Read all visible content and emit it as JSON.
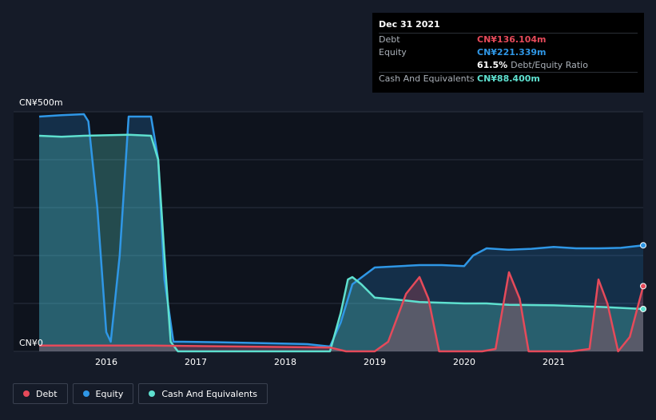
{
  "tooltip": {
    "date": "Dec 31 2021",
    "rows": [
      {
        "label": "Debt",
        "value": "CN¥136.104m",
        "color": "#e64a5a"
      },
      {
        "label": "Equity",
        "value": "CN¥221.339m",
        "color": "#2f97e6"
      },
      {
        "label": "",
        "value": "61.5%",
        "suffix": "Debt/Equity Ratio",
        "color": "#ffffff"
      },
      {
        "label": "Cash And Equivalents",
        "value": "CN¥88.400m",
        "color": "#5ee0cf"
      }
    ]
  },
  "legend": [
    {
      "label": "Debt",
      "color": "#e64a5a"
    },
    {
      "label": "Equity",
      "color": "#2f97e6"
    },
    {
      "label": "Cash And Equivalents",
      "color": "#5ee0cf"
    }
  ],
  "chart_data": {
    "type": "area",
    "title": "",
    "ylabel": "",
    "xlabel": "",
    "ylim": [
      0,
      500
    ],
    "xlim": [
      2015.25,
      2022.0
    ],
    "y_tick_labels": [
      "CN¥500m",
      "CN¥0"
    ],
    "y_ticks": [
      500,
      0
    ],
    "x_ticks": [
      2016,
      2017,
      2018,
      2019,
      2020,
      2021
    ],
    "x_tick_labels": [
      "2016",
      "2017",
      "2018",
      "2019",
      "2020",
      "2021"
    ],
    "series": [
      {
        "name": "Equity",
        "color": "#2f97e6",
        "x": [
          2015.25,
          2015.5,
          2015.75,
          2015.8,
          2015.9,
          2016.0,
          2016.05,
          2016.15,
          2016.25,
          2016.5,
          2016.58,
          2016.65,
          2016.75,
          2016.85,
          2017.25,
          2017.75,
          2018.25,
          2018.5,
          2018.62,
          2018.75,
          2019.0,
          2019.5,
          2019.75,
          2020.0,
          2020.1,
          2020.25,
          2020.5,
          2020.75,
          2021.0,
          2021.25,
          2021.5,
          2021.75,
          2022.0
        ],
        "values": [
          490,
          493,
          495,
          480,
          300,
          40,
          20,
          200,
          490,
          490,
          400,
          150,
          20,
          20,
          19,
          17,
          15,
          10,
          60,
          140,
          175,
          180,
          180,
          178,
          200,
          215,
          212,
          214,
          218,
          215,
          215,
          216,
          221.339
        ]
      },
      {
        "name": "Cash And Equivalents",
        "color": "#5ee0cf",
        "x": [
          2015.25,
          2015.5,
          2015.75,
          2016.0,
          2016.25,
          2016.5,
          2016.58,
          2016.65,
          2016.72,
          2016.8,
          2017.25,
          2017.75,
          2018.25,
          2018.5,
          2018.62,
          2018.7,
          2018.75,
          2018.85,
          2019.0,
          2019.25,
          2019.5,
          2020.0,
          2020.25,
          2020.5,
          2021.0,
          2021.5,
          2022.0
        ],
        "values": [
          450,
          448,
          450,
          451,
          452,
          450,
          400,
          200,
          20,
          0,
          0,
          0,
          0,
          0,
          80,
          150,
          155,
          140,
          112,
          108,
          103,
          100,
          100,
          97,
          96,
          93,
          88.4
        ]
      },
      {
        "name": "Debt",
        "color": "#e64a5a",
        "x": [
          2015.25,
          2015.5,
          2016.0,
          2016.5,
          2017.0,
          2017.5,
          2018.0,
          2018.5,
          2018.68,
          2018.85,
          2019.0,
          2019.15,
          2019.35,
          2019.5,
          2019.6,
          2019.72,
          2019.85,
          2020.0,
          2020.2,
          2020.35,
          2020.5,
          2020.62,
          2020.72,
          2020.85,
          2021.0,
          2021.2,
          2021.4,
          2021.5,
          2021.6,
          2021.72,
          2021.85,
          2022.0
        ],
        "values": [
          12,
          12,
          12,
          12,
          11,
          10,
          9,
          8,
          0,
          0,
          0,
          20,
          120,
          155,
          110,
          0,
          0,
          0,
          0,
          5,
          165,
          110,
          0,
          0,
          0,
          0,
          5,
          150,
          100,
          0,
          30,
          136.104
        ]
      }
    ]
  }
}
